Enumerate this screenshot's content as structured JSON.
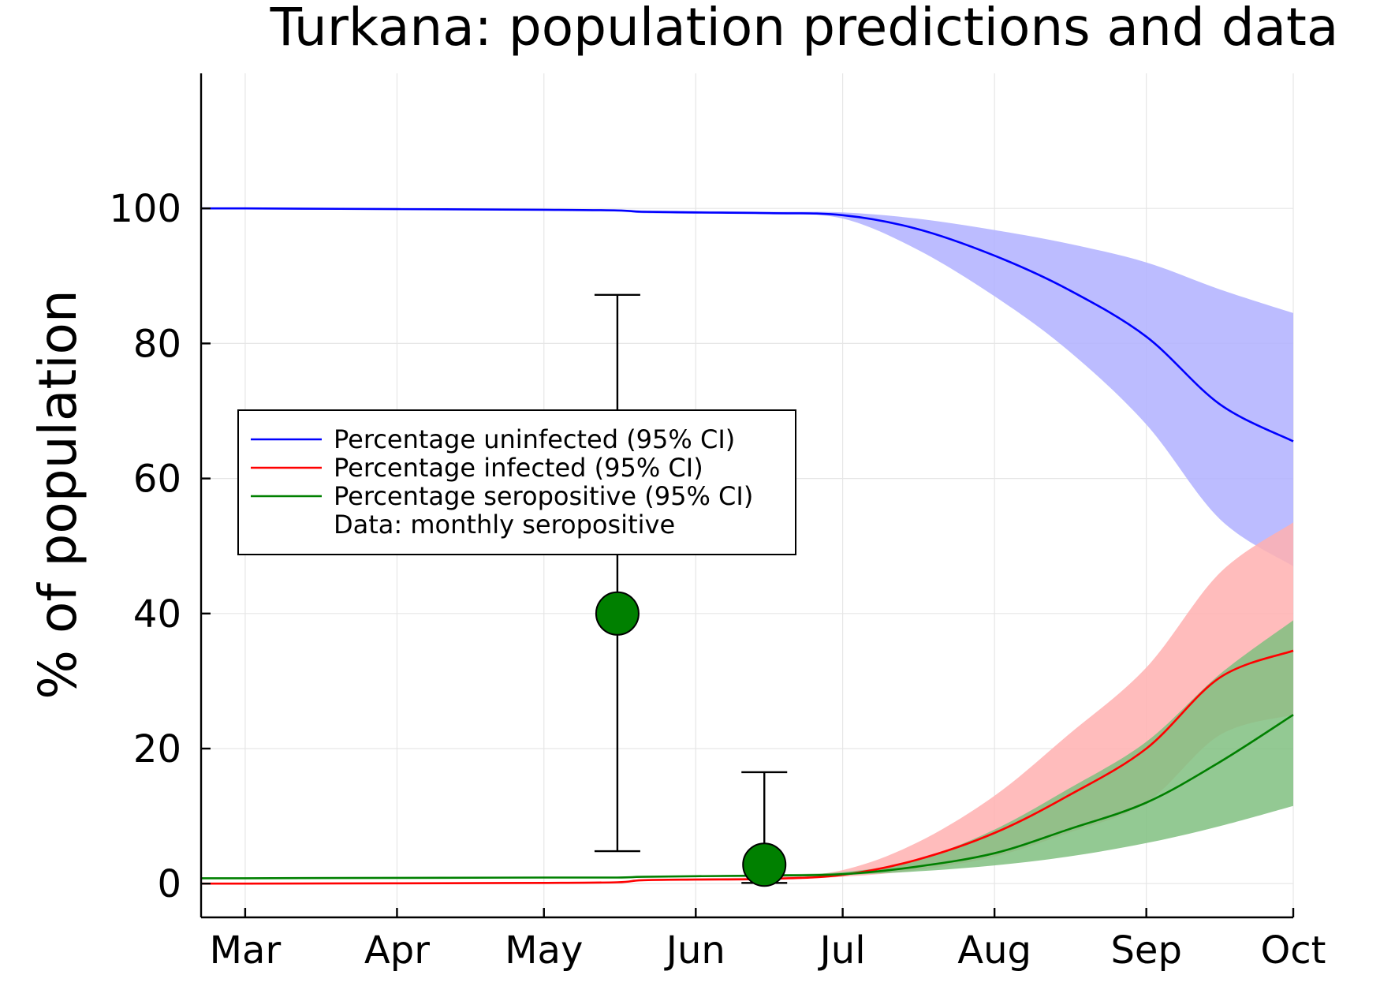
{
  "chart_data": {
    "type": "line",
    "title": "Turkana: population predictions and data",
    "xlabel": "",
    "ylabel": "% of population",
    "x_ticks": [
      {
        "label": "Mar",
        "day": 0
      },
      {
        "label": "Apr",
        "day": 31
      },
      {
        "label": "May",
        "day": 61
      },
      {
        "label": "Jun",
        "day": 92
      },
      {
        "label": "Jul",
        "day": 122
      },
      {
        "label": "Aug",
        "day": 153
      },
      {
        "label": "Sep",
        "day": 184
      },
      {
        "label": "Oct",
        "day": 214
      }
    ],
    "y_ticks": [
      0,
      20,
      40,
      60,
      80,
      100
    ],
    "xlim": [
      -9,
      214
    ],
    "ylim": [
      -5,
      120
    ],
    "grid": true,
    "legend_position": "center-left",
    "x": [
      -9,
      0,
      31,
      61,
      76,
      81,
      92,
      107,
      122,
      137,
      153,
      168,
      184,
      199,
      214
    ],
    "series": [
      {
        "name": "Percentage uninfected (95% CI)",
        "color": "#0000ff",
        "band_color": "#b0b0ff",
        "values": [
          100,
          100,
          99.9,
          99.8,
          99.7,
          99.5,
          99.4,
          99.3,
          99,
          97,
          93,
          88,
          81,
          71,
          65.5
        ],
        "lower": [
          100,
          100,
          99.9,
          99.8,
          99.6,
          99.3,
          99.2,
          99.2,
          98.5,
          94,
          87,
          79,
          68,
          54,
          47
        ],
        "upper": [
          100,
          100,
          99.9,
          99.8,
          99.8,
          99.7,
          99.6,
          99.5,
          99.4,
          98.5,
          96.8,
          94.8,
          92,
          88,
          84.5
        ]
      },
      {
        "name": "Percentage infected (95% CI)",
        "color": "#ff0000",
        "band_color": "#ffb0b0",
        "values": [
          0,
          0,
          0.05,
          0.1,
          0.2,
          0.5,
          0.6,
          0.7,
          1.3,
          3.5,
          7.5,
          13,
          20,
          30.5,
          34.5
        ],
        "lower": [
          0,
          0,
          0.05,
          0.1,
          0.2,
          0.4,
          0.5,
          0.6,
          1,
          2,
          4,
          7.5,
          12,
          22,
          25
        ],
        "upper": [
          0,
          0,
          0.05,
          0.1,
          0.2,
          0.6,
          0.8,
          1,
          2,
          6,
          13,
          22,
          32,
          46,
          53.5
        ]
      },
      {
        "name": "Percentage seropositive (95% CI)",
        "color": "#008000",
        "band_color": "#80c080",
        "values": [
          0.8,
          0.8,
          0.85,
          0.9,
          0.9,
          1,
          1.1,
          1.2,
          1.4,
          2.5,
          4.5,
          8,
          12,
          18,
          25
        ],
        "lower": [
          0.8,
          0.8,
          0.85,
          0.9,
          0.9,
          1,
          1.1,
          1.1,
          1.3,
          1.8,
          2.7,
          4,
          6,
          8.5,
          11.5
        ],
        "upper": [
          0.8,
          0.8,
          0.85,
          0.9,
          0.9,
          1,
          1.2,
          1.4,
          1.7,
          3.5,
          8,
          14,
          21,
          31,
          39
        ]
      }
    ],
    "data_points": {
      "name": "Data: monthly seropositive",
      "color": "#008000",
      "points": [
        {
          "x": 76,
          "y": 40,
          "lower": 4.8,
          "upper": 87.2
        },
        {
          "x": 106,
          "y": 2.8,
          "lower": 0.1,
          "upper": 16.5
        }
      ]
    }
  }
}
